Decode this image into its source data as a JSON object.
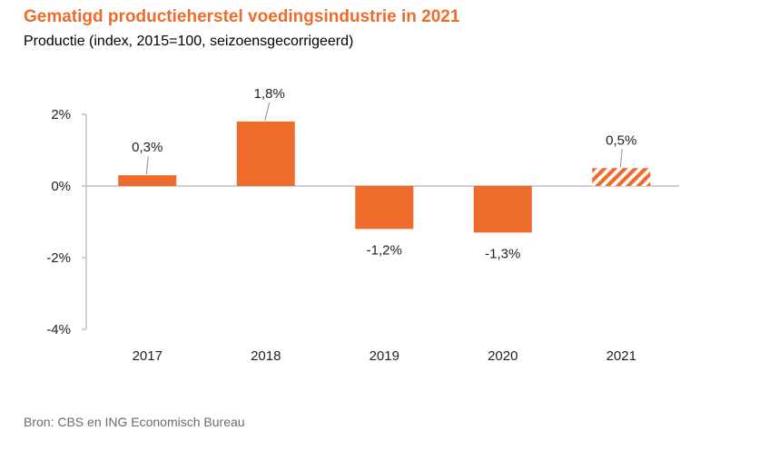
{
  "title": "Gematigd productieherstel voedingsindustrie in 2021",
  "subtitle": "Productie (index, 2015=100, seizoensgecorrigeerd)",
  "source": "Bron: CBS en ING Economisch Bureau",
  "colors": {
    "bar": "#ee6c2b",
    "title": "#ee6c2b",
    "axis": "#bfbfbf"
  },
  "chart_data": {
    "type": "bar",
    "categories": [
      "2017",
      "2018",
      "2019",
      "2020",
      "2021"
    ],
    "values": [
      0.3,
      1.8,
      -1.2,
      -1.3,
      0.5
    ],
    "data_labels": [
      "0,3%",
      "1,8%",
      "-1,2%",
      "-1,3%",
      "0,5%"
    ],
    "forecast": [
      false,
      false,
      false,
      false,
      true
    ],
    "ylim": [
      -4,
      2
    ],
    "yticks": [
      2,
      0,
      -2,
      -4
    ],
    "ytick_labels": [
      "2%",
      "0%",
      "-2%",
      "-4%"
    ],
    "grid": false,
    "legend": "none"
  }
}
